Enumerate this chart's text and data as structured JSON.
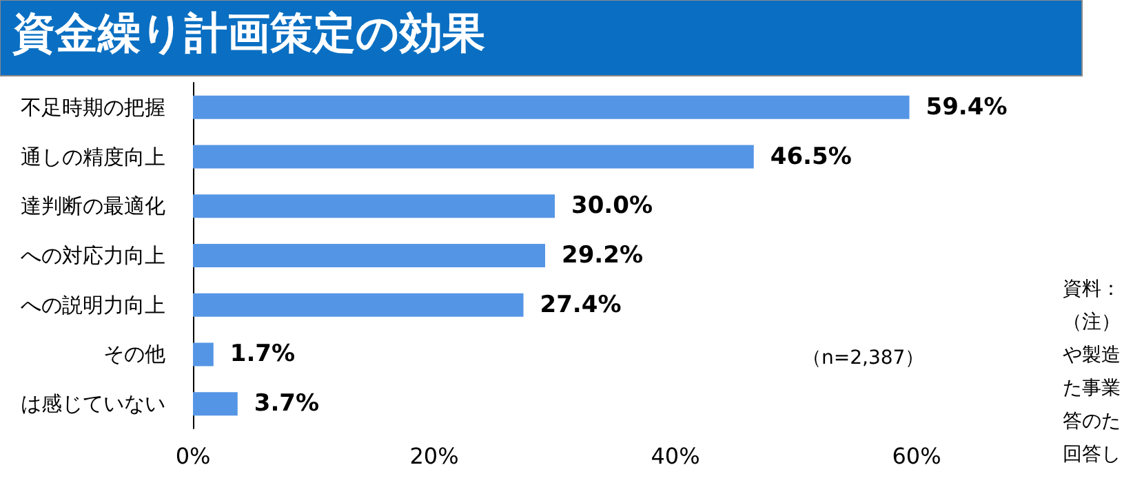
{
  "chart_data": {
    "type": "bar",
    "orientation": "horizontal",
    "title": "資金繰り計画策定の効果",
    "categories": [
      "不足時期の把握",
      "通しの精度向上",
      "達判断の最適化",
      "への対応力向上",
      "への説明力向上",
      "その他",
      "は感じていない"
    ],
    "values": [
      59.4,
      46.5,
      30.0,
      29.2,
      27.4,
      1.7,
      3.7
    ],
    "value_labels": [
      "59.4%",
      "46.5%",
      "30.0%",
      "29.2%",
      "27.4%",
      "1.7%",
      "3.7%"
    ],
    "color": "#5595e5",
    "xlim": [
      0,
      60
    ],
    "xticks": [
      {
        "value": 0,
        "label": "0%"
      },
      {
        "value": 20,
        "label": "20%"
      },
      {
        "value": 40,
        "label": "40%"
      },
      {
        "value": 60,
        "label": "60%"
      }
    ],
    "grid": false,
    "annotations": [
      "（n=2,387）",
      "資料：",
      "（注）",
      "や製造",
      "た事業",
      "答のた",
      "回答し"
    ]
  }
}
